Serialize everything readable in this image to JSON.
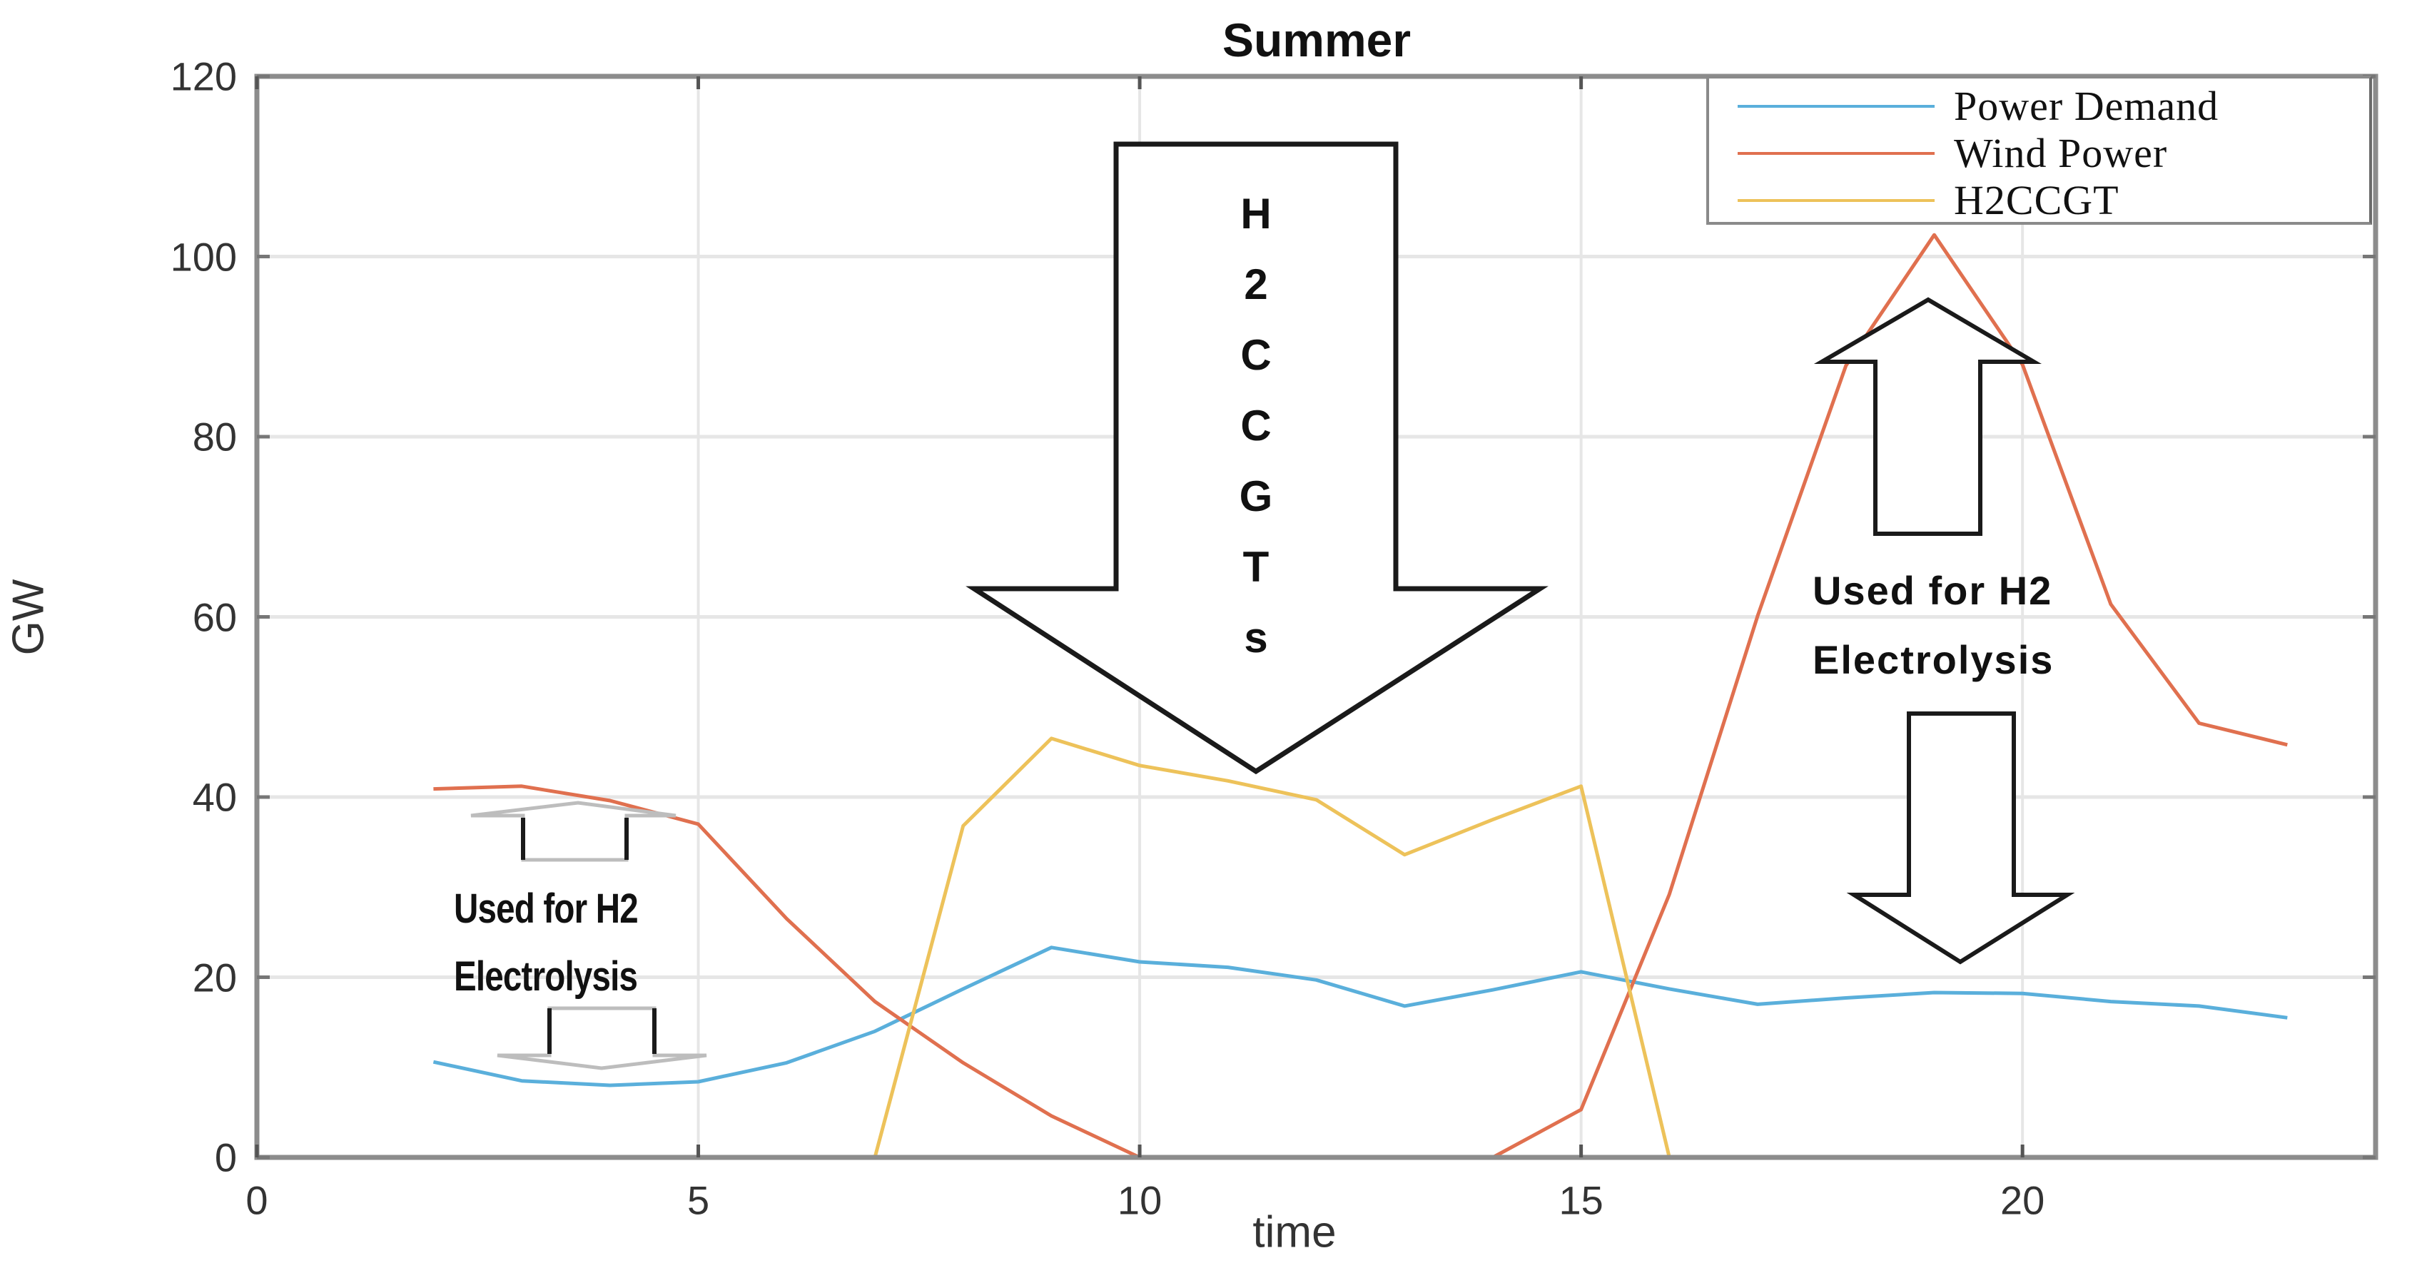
{
  "chart_data": {
    "type": "line",
    "title": "Summer",
    "xlabel": "time",
    "ylabel": "GW",
    "xlim": [
      0,
      24
    ],
    "ylim": [
      0,
      120
    ],
    "xticks": [
      0,
      5,
      10,
      15,
      20
    ],
    "yticks": [
      0,
      20,
      40,
      60,
      80,
      100,
      120
    ],
    "grid": true,
    "legend_position": "northeast",
    "x": [
      2,
      3,
      4,
      5,
      6,
      7,
      8,
      9,
      10,
      11,
      12,
      13,
      14,
      15,
      16,
      17,
      18,
      19,
      20,
      21,
      22,
      23
    ],
    "series": [
      {
        "name": "Power Demand",
        "color": "#5AAFDB",
        "values": [
          10.6,
          8.5,
          8.0,
          8.4,
          10.5,
          14.0,
          18.7,
          23.3,
          21.7,
          21.1,
          19.7,
          16.8,
          18.6,
          20.6,
          18.7,
          17.0,
          17.7,
          18.3,
          18.2,
          17.3,
          16.8,
          15.5
        ]
      },
      {
        "name": "Wind Power",
        "color": "#E0704F",
        "values": [
          40.9,
          41.2,
          39.6,
          37.0,
          26.5,
          17.3,
          10.5,
          4.6,
          0,
          0,
          0,
          0,
          0,
          5.3,
          29.2,
          60.1,
          87.9,
          102.4,
          88.0,
          61.4,
          48.2,
          45.8
        ]
      },
      {
        "name": "H2CCGT",
        "color": "#EDC25A",
        "values": [
          0,
          0,
          0,
          0,
          0,
          0,
          36.8,
          46.5,
          43.5,
          41.8,
          39.7,
          33.6,
          37.5,
          41.2,
          0,
          0,
          0,
          0,
          0,
          0,
          0,
          0
        ]
      }
    ],
    "annotations": [
      {
        "text": "H2CCGTs",
        "type": "down-arrow",
        "position": "center-top",
        "letters": [
          "H",
          "2",
          "C",
          "C",
          "G",
          "T",
          "s"
        ]
      },
      {
        "text": "Used for H2 Electrolysis",
        "type": "double-arrow",
        "position": "left",
        "line1": "Used for H2",
        "line2": "Electrolysis"
      },
      {
        "text": "Used for H2 Electrolysis",
        "type": "double-arrow",
        "position": "right",
        "line1": "Used for H2",
        "line2": "Electrolysis"
      }
    ]
  },
  "colors": {
    "axis": "#8c8c8c",
    "grid": "#e6e6e6",
    "arrow": "#1a1a1a",
    "arrow_light": "#b5b5b5"
  }
}
